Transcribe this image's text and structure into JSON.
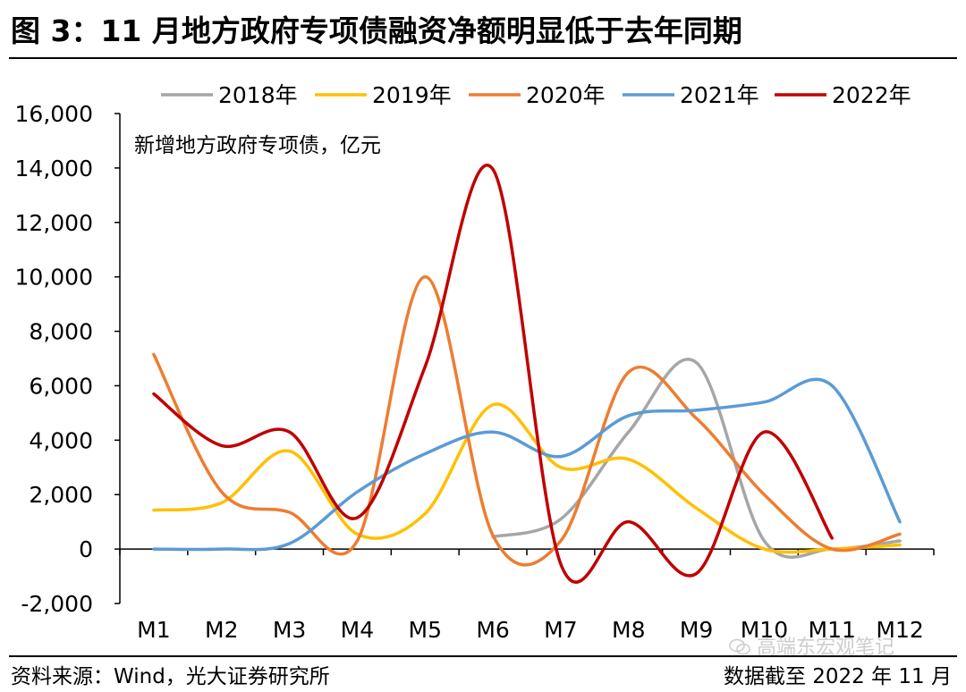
{
  "figure": {
    "title": "图 3：11 月地方政府专项债融资净额明显低于去年同期",
    "source": "资料来源：Wind，光大证券研究所",
    "cutoff": "数据截至 2022 年 11 月",
    "watermark": "高端东宏观笔记",
    "watermark_icon": "wechat-icon"
  },
  "chart_data": {
    "type": "line",
    "title": "",
    "annotation": "新增地方政府专项债，亿元",
    "xlabel": "",
    "ylabel": "新增地方政府专项债，亿元",
    "ylim": [
      -2000,
      16000
    ],
    "yticks": [
      -2000,
      0,
      2000,
      4000,
      6000,
      8000,
      10000,
      12000,
      14000,
      16000
    ],
    "ytick_labels": [
      "-2,000",
      "0",
      "2,000",
      "4,000",
      "6,000",
      "8,000",
      "10,000",
      "12,000",
      "14,000",
      "16,000"
    ],
    "categories": [
      "M1",
      "M2",
      "M3",
      "M4",
      "M5",
      "M6",
      "M7",
      "M8",
      "M9",
      "M10",
      "M11",
      "M12"
    ],
    "legend_position": "top",
    "grid": false,
    "series": [
      {
        "name": "2018年",
        "color": "#a6a6a6",
        "values": [
          null,
          null,
          null,
          null,
          null,
          450,
          1100,
          4300,
          6850,
          300,
          0,
          300
        ]
      },
      {
        "name": "2019年",
        "color": "#ffc000",
        "values": [
          1430,
          1700,
          3600,
          550,
          1300,
          5300,
          3000,
          3300,
          1500,
          0,
          0,
          150
        ]
      },
      {
        "name": "2020年",
        "color": "#ed7d31",
        "values": [
          7150,
          2100,
          1350,
          300,
          10000,
          500,
          300,
          6500,
          4800,
          2000,
          0,
          550
        ]
      },
      {
        "name": "2021年",
        "color": "#5b9bd5",
        "values": [
          0,
          0,
          200,
          2100,
          3500,
          4300,
          3400,
          4900,
          5100,
          5400,
          6000,
          1000
        ]
      },
      {
        "name": "2022年",
        "color": "#c00000",
        "values": [
          5700,
          3800,
          4300,
          1150,
          6700,
          13950,
          -550,
          1000,
          -900,
          4300,
          400,
          null
        ]
      }
    ]
  }
}
